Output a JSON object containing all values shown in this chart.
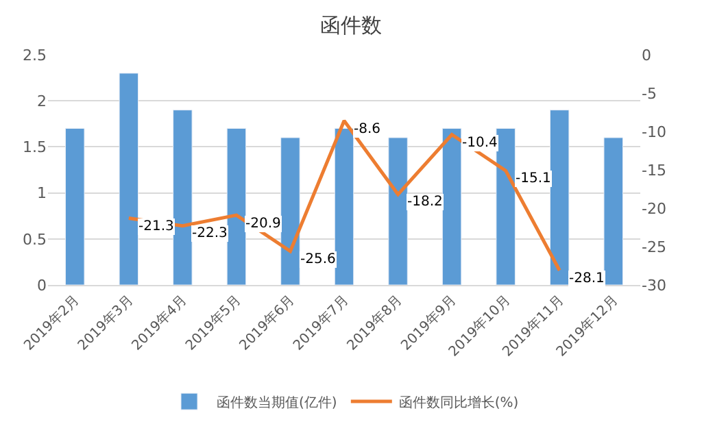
{
  "chart_data": {
    "type": "bar",
    "title": "函件数",
    "categories": [
      "2019年2月",
      "2019年3月",
      "2019年4月",
      "2019年5月",
      "2019年6月",
      "2019年7月",
      "2019年8月",
      "2019年9月",
      "2019年10月",
      "2019年11月",
      "2019年12月"
    ],
    "series": [
      {
        "name": "函件数当期值(亿件)",
        "color": "#5b9bd5",
        "values": [
          1.7,
          2.3,
          1.9,
          1.7,
          1.6,
          1.7,
          1.6,
          1.7,
          1.7,
          1.9,
          1.6
        ]
      },
      {
        "name": "函件数同比增长(%)",
        "type": "line",
        "axis": "y2",
        "color": "#ed7d31",
        "values": [
          null,
          -21.3,
          -22.3,
          -20.9,
          -25.6,
          -8.6,
          -18.2,
          -10.4,
          -15.1,
          -28.1,
          null
        ],
        "value_labels": [
          null,
          "-21.3",
          "-22.3",
          "-20.9",
          "-25.6",
          "-8.6",
          "-18.2",
          "-10.4",
          "-15.1",
          "-28.1",
          null
        ]
      }
    ],
    "ylim": [
      0,
      2.5
    ],
    "yticks": [
      0,
      0.5,
      1,
      1.5,
      2,
      2.5
    ],
    "y2lim": [
      -30,
      0
    ],
    "y2ticks": [
      -30,
      -25,
      -20,
      -15,
      -10,
      -5,
      0
    ],
    "grid": "y",
    "legend": "bottom",
    "marker": "none",
    "line_style": "solid"
  }
}
